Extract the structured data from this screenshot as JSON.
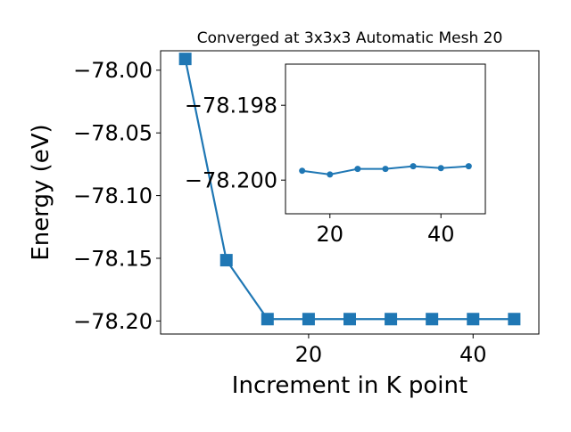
{
  "chart_data": [
    {
      "type": "line",
      "title": "Converged at 3x3x3 Automatic Mesh 20",
      "xlabel": "Increment in K point",
      "ylabel": "Energy (eV)",
      "xlim": [
        2.0,
        48.0
      ],
      "ylim": [
        -78.2104,
        -77.9845
      ],
      "xticks": [
        20,
        40
      ],
      "xtick_labels": [
        "20",
        "40"
      ],
      "yticks": [
        -78.0,
        -78.05,
        -78.1,
        -78.15,
        -78.2
      ],
      "ytick_labels": [
        "−78.00",
        "−78.05",
        "−78.10",
        "−78.15",
        "−78.20"
      ],
      "grid": false,
      "series": [
        {
          "marker": "square",
          "color": "#1f77b4",
          "x": [
            5,
            10,
            15,
            20,
            25,
            30,
            35,
            40,
            45
          ],
          "y": [
            -77.991,
            -78.1515,
            -78.1985,
            -78.1985,
            -78.1985,
            -78.1985,
            -78.1985,
            -78.1985,
            -78.1985
          ]
        }
      ]
    },
    {
      "type": "line",
      "title": "",
      "xlabel": "",
      "ylabel": "",
      "xlim": [
        12.0,
        48.0
      ],
      "ylim": [
        -78.2009,
        -78.1969
      ],
      "xticks": [
        20,
        40
      ],
      "xtick_labels": [
        "20",
        "40"
      ],
      "yticks": [
        -78.2,
        -78.198
      ],
      "ytick_labels": [
        "−78.200",
        "−78.198"
      ],
      "grid": false,
      "series": [
        {
          "marker": "circle",
          "color": "#1f77b4",
          "x": [
            15,
            20,
            25,
            30,
            35,
            40,
            45
          ],
          "y": [
            -78.19975,
            -78.19985,
            -78.1997,
            -78.1997,
            -78.19963,
            -78.19968,
            -78.19963
          ]
        }
      ]
    }
  ]
}
